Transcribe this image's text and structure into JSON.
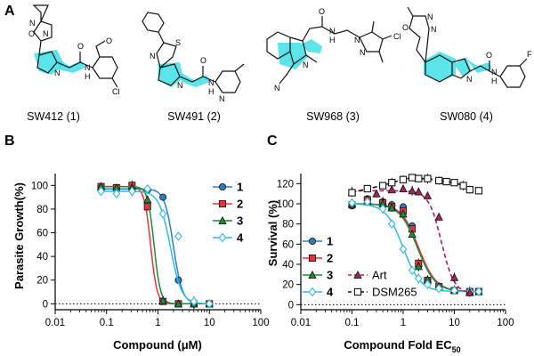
{
  "panels": {
    "A": "A",
    "B": "B",
    "C": "C"
  },
  "compounds": [
    {
      "id": "1",
      "label": "SW412 (1)"
    },
    {
      "id": "2",
      "label": "SW491 (2)"
    },
    {
      "id": "3",
      "label": "SW968 (3)"
    },
    {
      "id": "4",
      "label": "SW080 (4)"
    }
  ],
  "atoms": {
    "s1": [
      "N",
      "O",
      "N",
      "O",
      "N",
      "H",
      "O",
      "N",
      "Cl"
    ],
    "s2": [
      "N",
      "S",
      "N",
      "O",
      "N",
      "H",
      "N"
    ],
    "s3": [
      "N",
      "O",
      "N",
      "H",
      "N",
      "N",
      "Cl",
      "N"
    ],
    "s4": [
      "N",
      "O",
      "N",
      "N",
      "O",
      "N",
      "H",
      "F"
    ]
  },
  "colors": {
    "c1": "#2b7fc1",
    "c2": "#e7333a",
    "c3": "#1e8a3b",
    "c4": "#36b7e6",
    "art": "#a3235e",
    "dsm": "#111111",
    "highlight": "#3ee0e6"
  },
  "chart_data": [
    {
      "panel": "B",
      "type": "line",
      "xscale": "log",
      "xlim": [
        0.01,
        100
      ],
      "ylim": [
        -5,
        110
      ],
      "xticks": [
        "0.01",
        "0.1",
        "1",
        "10",
        "100"
      ],
      "yticks": [
        "0",
        "20",
        "40",
        "60",
        "80",
        "100"
      ],
      "xlabel": "Compound (μM)",
      "ylabel": "Parasite Growth(%)",
      "legend": "top-right",
      "series": [
        {
          "name": "1",
          "marker": "circle",
          "color": "#2b7fc1",
          "x": [
            0.078,
            0.156,
            0.313,
            0.625,
            1.25,
            2.5,
            5,
            10
          ],
          "y": [
            97,
            98,
            97,
            96,
            90,
            20,
            1,
            0
          ],
          "ec50": 2.0,
          "hill": 5
        },
        {
          "name": "2",
          "marker": "square",
          "color": "#e7333a",
          "x": [
            0.078,
            0.156,
            0.313,
            0.625,
            1.25,
            2.5,
            5,
            10
          ],
          "y": [
            99,
            98,
            100,
            82,
            2,
            0,
            0,
            0
          ],
          "ec50": 0.72,
          "hill": 7
        },
        {
          "name": "3",
          "marker": "triangle",
          "color": "#1e8a3b",
          "x": [
            0.078,
            0.156,
            0.313,
            0.625,
            1.25,
            2.5,
            5,
            10
          ],
          "y": [
            99,
            98,
            98,
            88,
            3,
            0,
            0,
            0
          ],
          "ec50": 0.84,
          "hill": 7
        },
        {
          "name": "4",
          "marker": "diamond",
          "color": "#36b7e6",
          "x": [
            0.078,
            0.156,
            0.313,
            0.625,
            1.25,
            2.5,
            5,
            10
          ],
          "y": [
            95,
            93,
            95,
            97,
            76,
            57,
            2,
            0
          ],
          "ec50": 1.75,
          "hill": 4
        }
      ]
    },
    {
      "panel": "C",
      "type": "line",
      "xscale": "log",
      "xlim": [
        0.01,
        100
      ],
      "ylim": [
        -5,
        130
      ],
      "xticks": [
        "0.01",
        "0.1",
        "1",
        "10",
        "100"
      ],
      "yticks": [
        "0",
        "20",
        "40",
        "60",
        "80",
        "100",
        "120"
      ],
      "xlabel": "Compound Fold EC",
      "xlabel_sub": "50",
      "ylabel": "Survival (%)",
      "legend": "bottom-left",
      "series": [
        {
          "name": "1",
          "marker": "circle",
          "color": "#2b7fc1",
          "x": [
            0.1,
            0.2,
            0.4,
            0.6,
            1,
            1.5,
            2,
            3,
            5,
            10,
            20,
            30
          ],
          "y": [
            98,
            105,
            102,
            99,
            97,
            78,
            38,
            22,
            17,
            14,
            13,
            13
          ],
          "top": 100,
          "bottom": 13,
          "ec50": 2.0,
          "hill": 2.6
        },
        {
          "name": "2",
          "marker": "square",
          "color": "#e7333a",
          "x": [
            0.1,
            0.2,
            0.4,
            0.6,
            1,
            1.5,
            2,
            3,
            5,
            10,
            20,
            30
          ],
          "y": [
            99,
            104,
            101,
            97,
            93,
            75,
            41,
            24,
            18,
            14,
            13,
            13
          ],
          "top": 100,
          "bottom": 13,
          "ec50": 2.0,
          "hill": 2.5
        },
        {
          "name": "3",
          "marker": "triangle",
          "color": "#1e8a3b",
          "x": [
            0.1,
            0.2,
            0.4,
            0.6,
            1,
            1.5,
            2,
            3,
            5,
            10,
            20,
            30
          ],
          "y": [
            100,
            103,
            100,
            96,
            90,
            70,
            38,
            25,
            18,
            15,
            13,
            13
          ],
          "top": 100,
          "bottom": 13,
          "ec50": 1.9,
          "hill": 2.5
        },
        {
          "name": "4",
          "marker": "diamond",
          "color": "#36b7e6",
          "x": [
            0.1,
            0.2,
            0.4,
            0.6,
            1,
            1.5,
            2,
            3,
            5,
            10,
            20,
            30
          ],
          "y": [
            101,
            102,
            95,
            80,
            55,
            34,
            26,
            20,
            16,
            14,
            13,
            13
          ],
          "top": 100,
          "bottom": 13,
          "ec50": 1.0,
          "hill": 2.6
        },
        {
          "name": "Art",
          "marker": "triangle",
          "color": "#a3235e",
          "dashed": true,
          "x": [
            0.1,
            0.3,
            0.6,
            1,
            1.5,
            2,
            3,
            5,
            10,
            20
          ],
          "y": [
            112,
            110,
            114,
            115,
            113,
            112,
            108,
            87,
            27,
            12
          ],
          "top": 113,
          "bottom": 11,
          "ec50": 5.6,
          "hill": 3.5
        },
        {
          "name": "DSM265",
          "marker": "open-square",
          "color": "#111111",
          "dashed": true,
          "x": [
            0.1,
            0.2,
            0.4,
            0.6,
            1,
            1.5,
            2,
            3,
            5,
            7,
            10,
            15,
            20,
            30
          ],
          "y": [
            111,
            115,
            118,
            121,
            124,
            126,
            125,
            125,
            123,
            122,
            121,
            118,
            114,
            113
          ]
        }
      ]
    }
  ]
}
